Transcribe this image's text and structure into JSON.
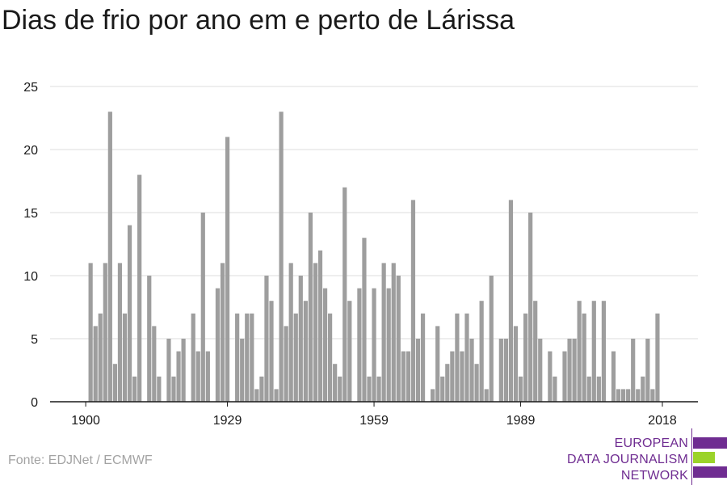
{
  "title": "Dias de frio por ano em e perto de Lárissa",
  "source": "Fonte: EDJNet / ECMWF",
  "logo": {
    "lines": [
      "EUROPEAN",
      "DATA JOURNALISM",
      "NETWORK"
    ]
  },
  "colors": {
    "bar": "#9e9e9e",
    "grid": "#dcdcdc",
    "axis": "#1a1a1a",
    "logo_purple": "#6f2c91",
    "logo_green": "#9bd32a"
  },
  "chart_data": {
    "type": "bar",
    "title": "Dias de frio por ano em e perto de Lárissa",
    "xlabel": "",
    "ylabel": "",
    "x_start": 1900,
    "x_end": 2019,
    "x_ticks": [
      1900,
      1929,
      1959,
      1989,
      2018
    ],
    "y_ticks": [
      0,
      5,
      10,
      15,
      20,
      25
    ],
    "ylim": [
      0,
      25
    ],
    "grid": true,
    "values": [
      0,
      11,
      6,
      7,
      11,
      23,
      3,
      11,
      7,
      14,
      2,
      18,
      0,
      10,
      6,
      2,
      0,
      5,
      2,
      4,
      5,
      0,
      7,
      4,
      15,
      4,
      0,
      9,
      11,
      21,
      0,
      7,
      5,
      7,
      7,
      1,
      2,
      10,
      8,
      1,
      23,
      6,
      11,
      7,
      10,
      8,
      15,
      11,
      12,
      9,
      7,
      3,
      2,
      17,
      8,
      0,
      9,
      13,
      2,
      9,
      2,
      11,
      9,
      11,
      10,
      4,
      4,
      16,
      5,
      7,
      0,
      1,
      6,
      2,
      3,
      4,
      7,
      4,
      7,
      5,
      3,
      8,
      1,
      10,
      0,
      5,
      5,
      16,
      6,
      2,
      7,
      15,
      8,
      5,
      0,
      4,
      2,
      0,
      4,
      5,
      5,
      8,
      7,
      2,
      8,
      2,
      8,
      0,
      4,
      1,
      1,
      1,
      5,
      1,
      2,
      5,
      1,
      7,
      0,
      0
    ]
  }
}
